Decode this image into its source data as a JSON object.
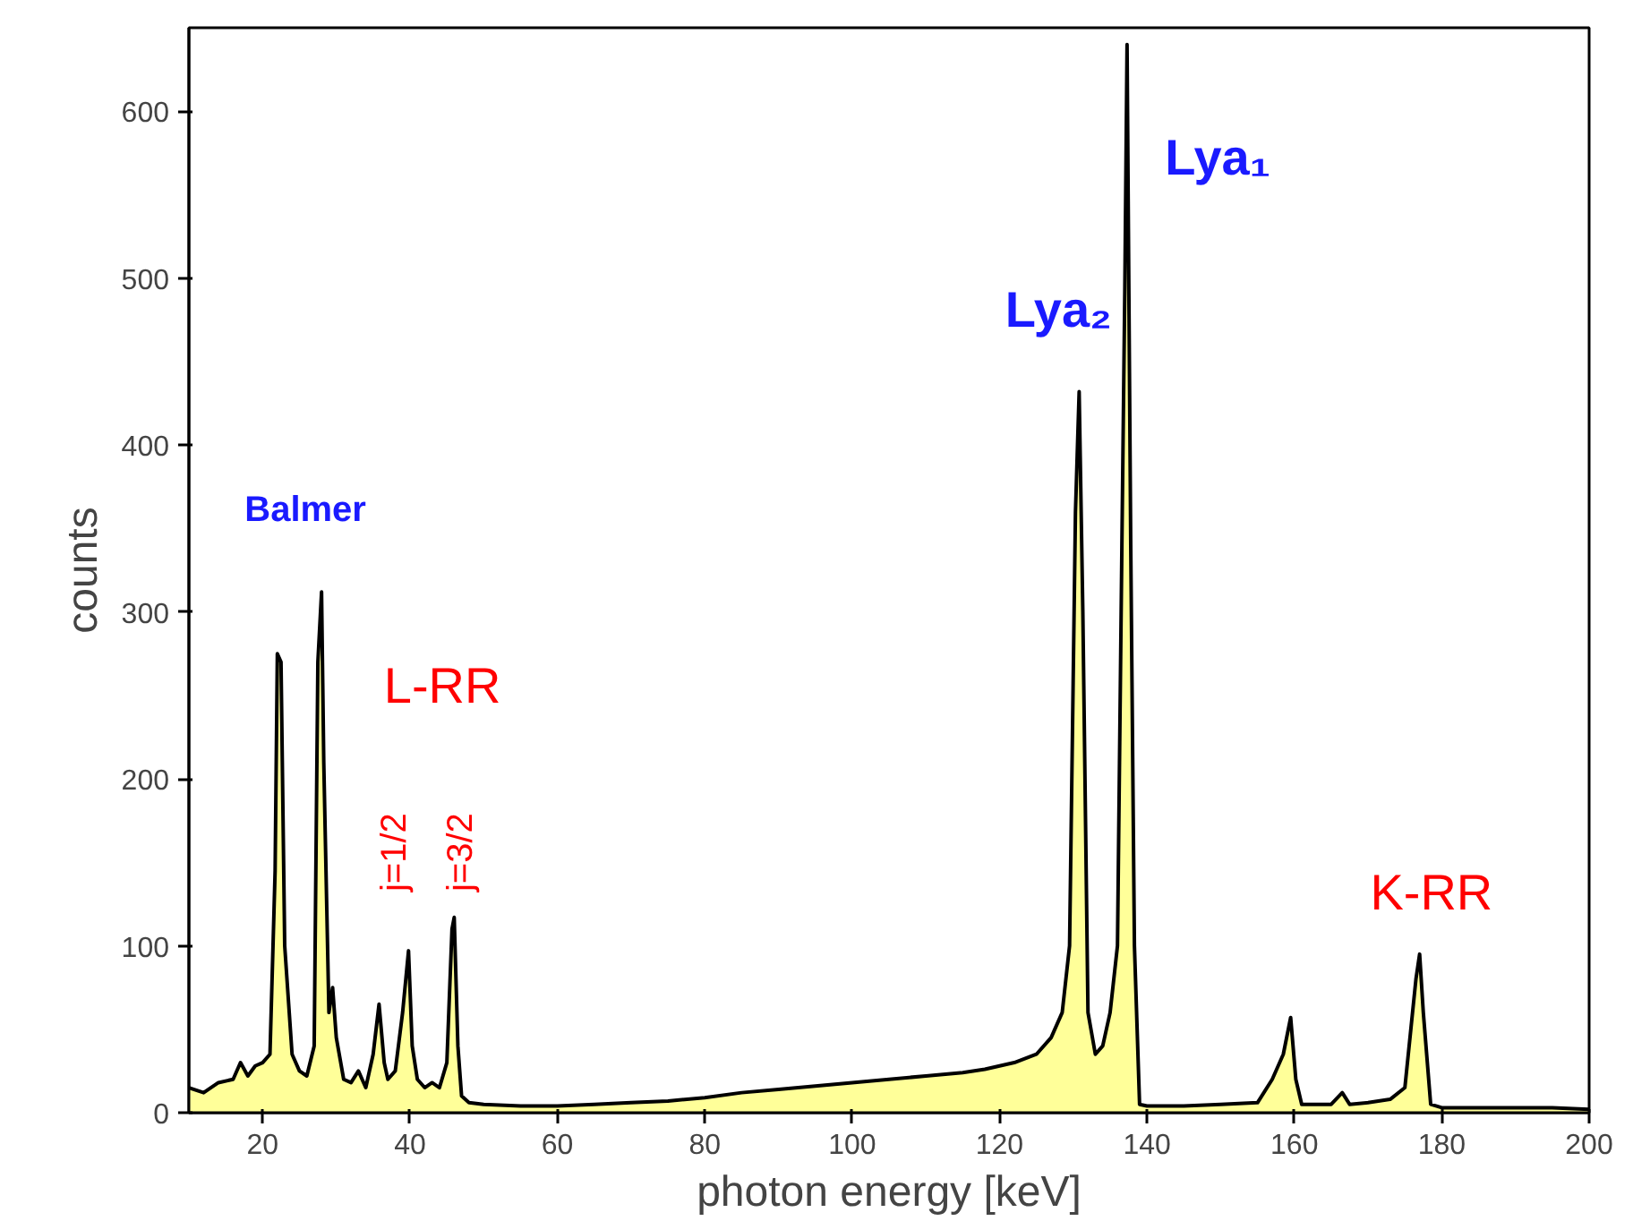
{
  "chart_data": {
    "type": "area",
    "xlabel": "photon energy [keV]",
    "ylabel": "counts",
    "x": [
      10,
      12,
      14,
      16,
      17,
      18,
      19,
      20,
      21,
      21.7,
      22,
      22.5,
      23,
      24,
      25,
      26,
      27,
      27.5,
      28,
      28.3,
      29,
      29.5,
      30,
      31,
      32,
      33,
      34,
      35,
      35.8,
      36.5,
      37,
      38,
      39,
      39.8,
      40.3,
      41,
      42,
      43,
      44,
      45,
      45.7,
      46,
      46.5,
      47,
      48,
      50,
      55,
      60,
      65,
      70,
      75,
      80,
      85,
      90,
      95,
      100,
      105,
      110,
      115,
      118,
      120,
      122,
      125,
      127,
      128.5,
      129.5,
      130.3,
      130.8,
      131.3,
      132,
      133,
      134,
      135,
      136,
      136.6,
      137,
      137.3,
      137.8,
      138.3,
      139,
      140,
      145,
      150,
      155,
      157,
      158.5,
      159.5,
      160.2,
      161,
      163,
      165,
      166.5,
      167.5,
      170,
      173,
      175,
      176.5,
      177,
      177.5,
      178.5,
      180,
      185,
      190,
      195,
      200
    ],
    "series": [
      {
        "color": "#ffff99",
        "values": [
          15,
          12,
          18,
          20,
          30,
          22,
          28,
          30,
          35,
          145,
          275,
          270,
          100,
          35,
          25,
          22,
          40,
          270,
          312,
          210,
          60,
          75,
          45,
          20,
          18,
          25,
          15,
          35,
          65,
          30,
          20,
          25,
          60,
          97,
          40,
          20,
          15,
          18,
          15,
          30,
          110,
          117,
          40,
          10,
          6,
          5,
          4,
          4,
          5,
          6,
          7,
          9,
          12,
          14,
          16,
          18,
          20,
          22,
          24,
          26,
          28,
          30,
          35,
          45,
          60,
          100,
          360,
          432,
          300,
          60,
          35,
          40,
          60,
          100,
          340,
          495,
          640,
          340,
          100,
          5,
          4,
          4,
          5,
          6,
          20,
          35,
          57,
          20,
          5,
          5,
          5,
          12,
          5,
          6,
          8,
          15,
          80,
          95,
          60,
          5,
          3,
          3,
          3,
          3,
          2
        ]
      }
    ],
    "xlim": [
      10,
      200
    ],
    "ylim": [
      0,
      650
    ],
    "xticks": [
      20,
      40,
      60,
      80,
      100,
      120,
      140,
      160,
      180,
      200
    ],
    "yticks": [
      0,
      100,
      200,
      300,
      400,
      500,
      600
    ],
    "grid": false,
    "annotations": [
      "Balmer",
      "L-RR",
      "j=1/2",
      "j=3/2",
      "Lya₂",
      "Lya₁",
      "K-RR"
    ]
  }
}
